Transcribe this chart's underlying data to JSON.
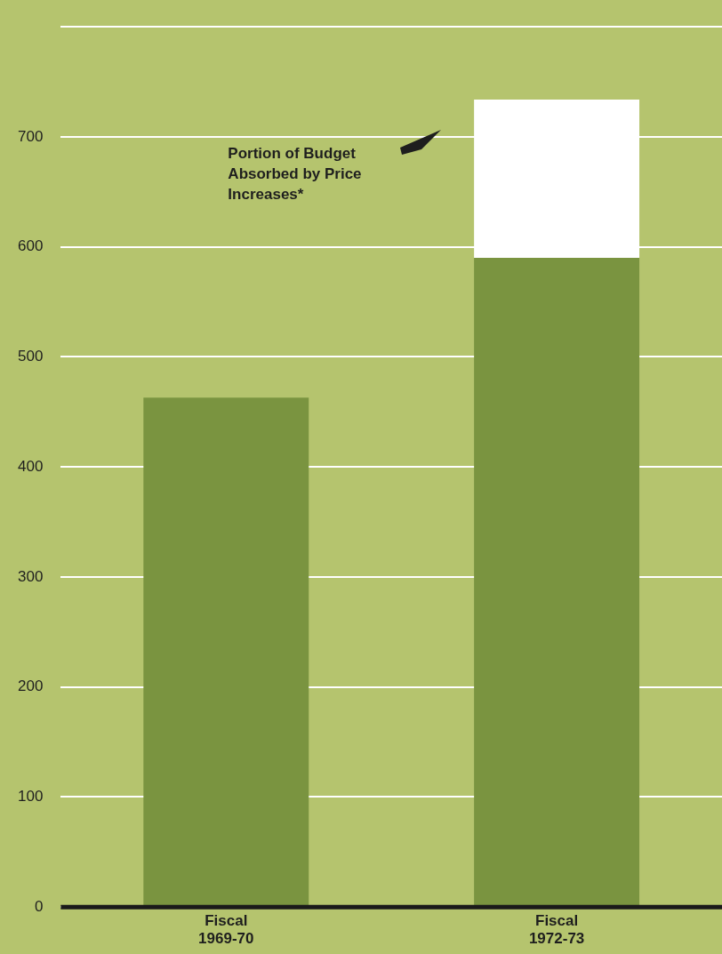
{
  "chart_data": {
    "type": "bar",
    "stacked": true,
    "categories": [
      "Fiscal 1969-70",
      "Fiscal 1972-73"
    ],
    "series": [
      {
        "color": "#7a9440",
        "values": [
          463,
          590
        ]
      },
      {
        "color": "#ffffff",
        "values": [
          null,
          144
        ]
      }
    ],
    "ylim": [
      0,
      800
    ],
    "yticks": [
      0,
      100,
      200,
      300,
      400,
      500,
      600,
      700,
      {
        "value": 800,
        "label": null
      }
    ],
    "grid": "y",
    "legend": false,
    "annotations": [
      "Portion of Budget Absorbed by Price Increases*"
    ]
  }
}
